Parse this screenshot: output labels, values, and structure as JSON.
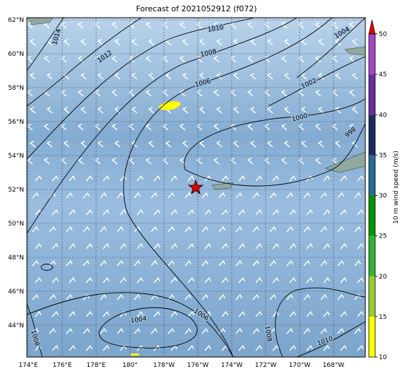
{
  "title": "Forecast of 2021052912 (f072)",
  "map": {
    "lat_labels": [
      "62°N",
      "60°N",
      "58°N",
      "56°N",
      "54°N",
      "52°N",
      "50°N",
      "48°N",
      "46°N",
      "44°N"
    ],
    "lon_labels": [
      "174°E",
      "176°E",
      "178°E",
      "180°",
      "178°W",
      "176°W",
      "174°W",
      "172°W",
      "170°W",
      "168°W"
    ],
    "contour_labels": [
      "1014",
      "1012",
      "1010",
      "1008",
      "1006",
      "1004",
      "1002",
      "1000",
      "998",
      "1004",
      "1006",
      "1008",
      "1008",
      "1010"
    ]
  },
  "colorbar": {
    "label": "10 m wind speed (m/s)",
    "range": [
      10,
      50
    ],
    "ticks": [
      10,
      15,
      20,
      25,
      30,
      35,
      40,
      45,
      50
    ],
    "colors": [
      "#ffff00",
      "#9acd32",
      "#32b432",
      "#009600",
      "#2c6a96",
      "#1c2c5c",
      "#6a2ca0",
      "#a446c4"
    ],
    "extend_color": "#e00000"
  }
}
